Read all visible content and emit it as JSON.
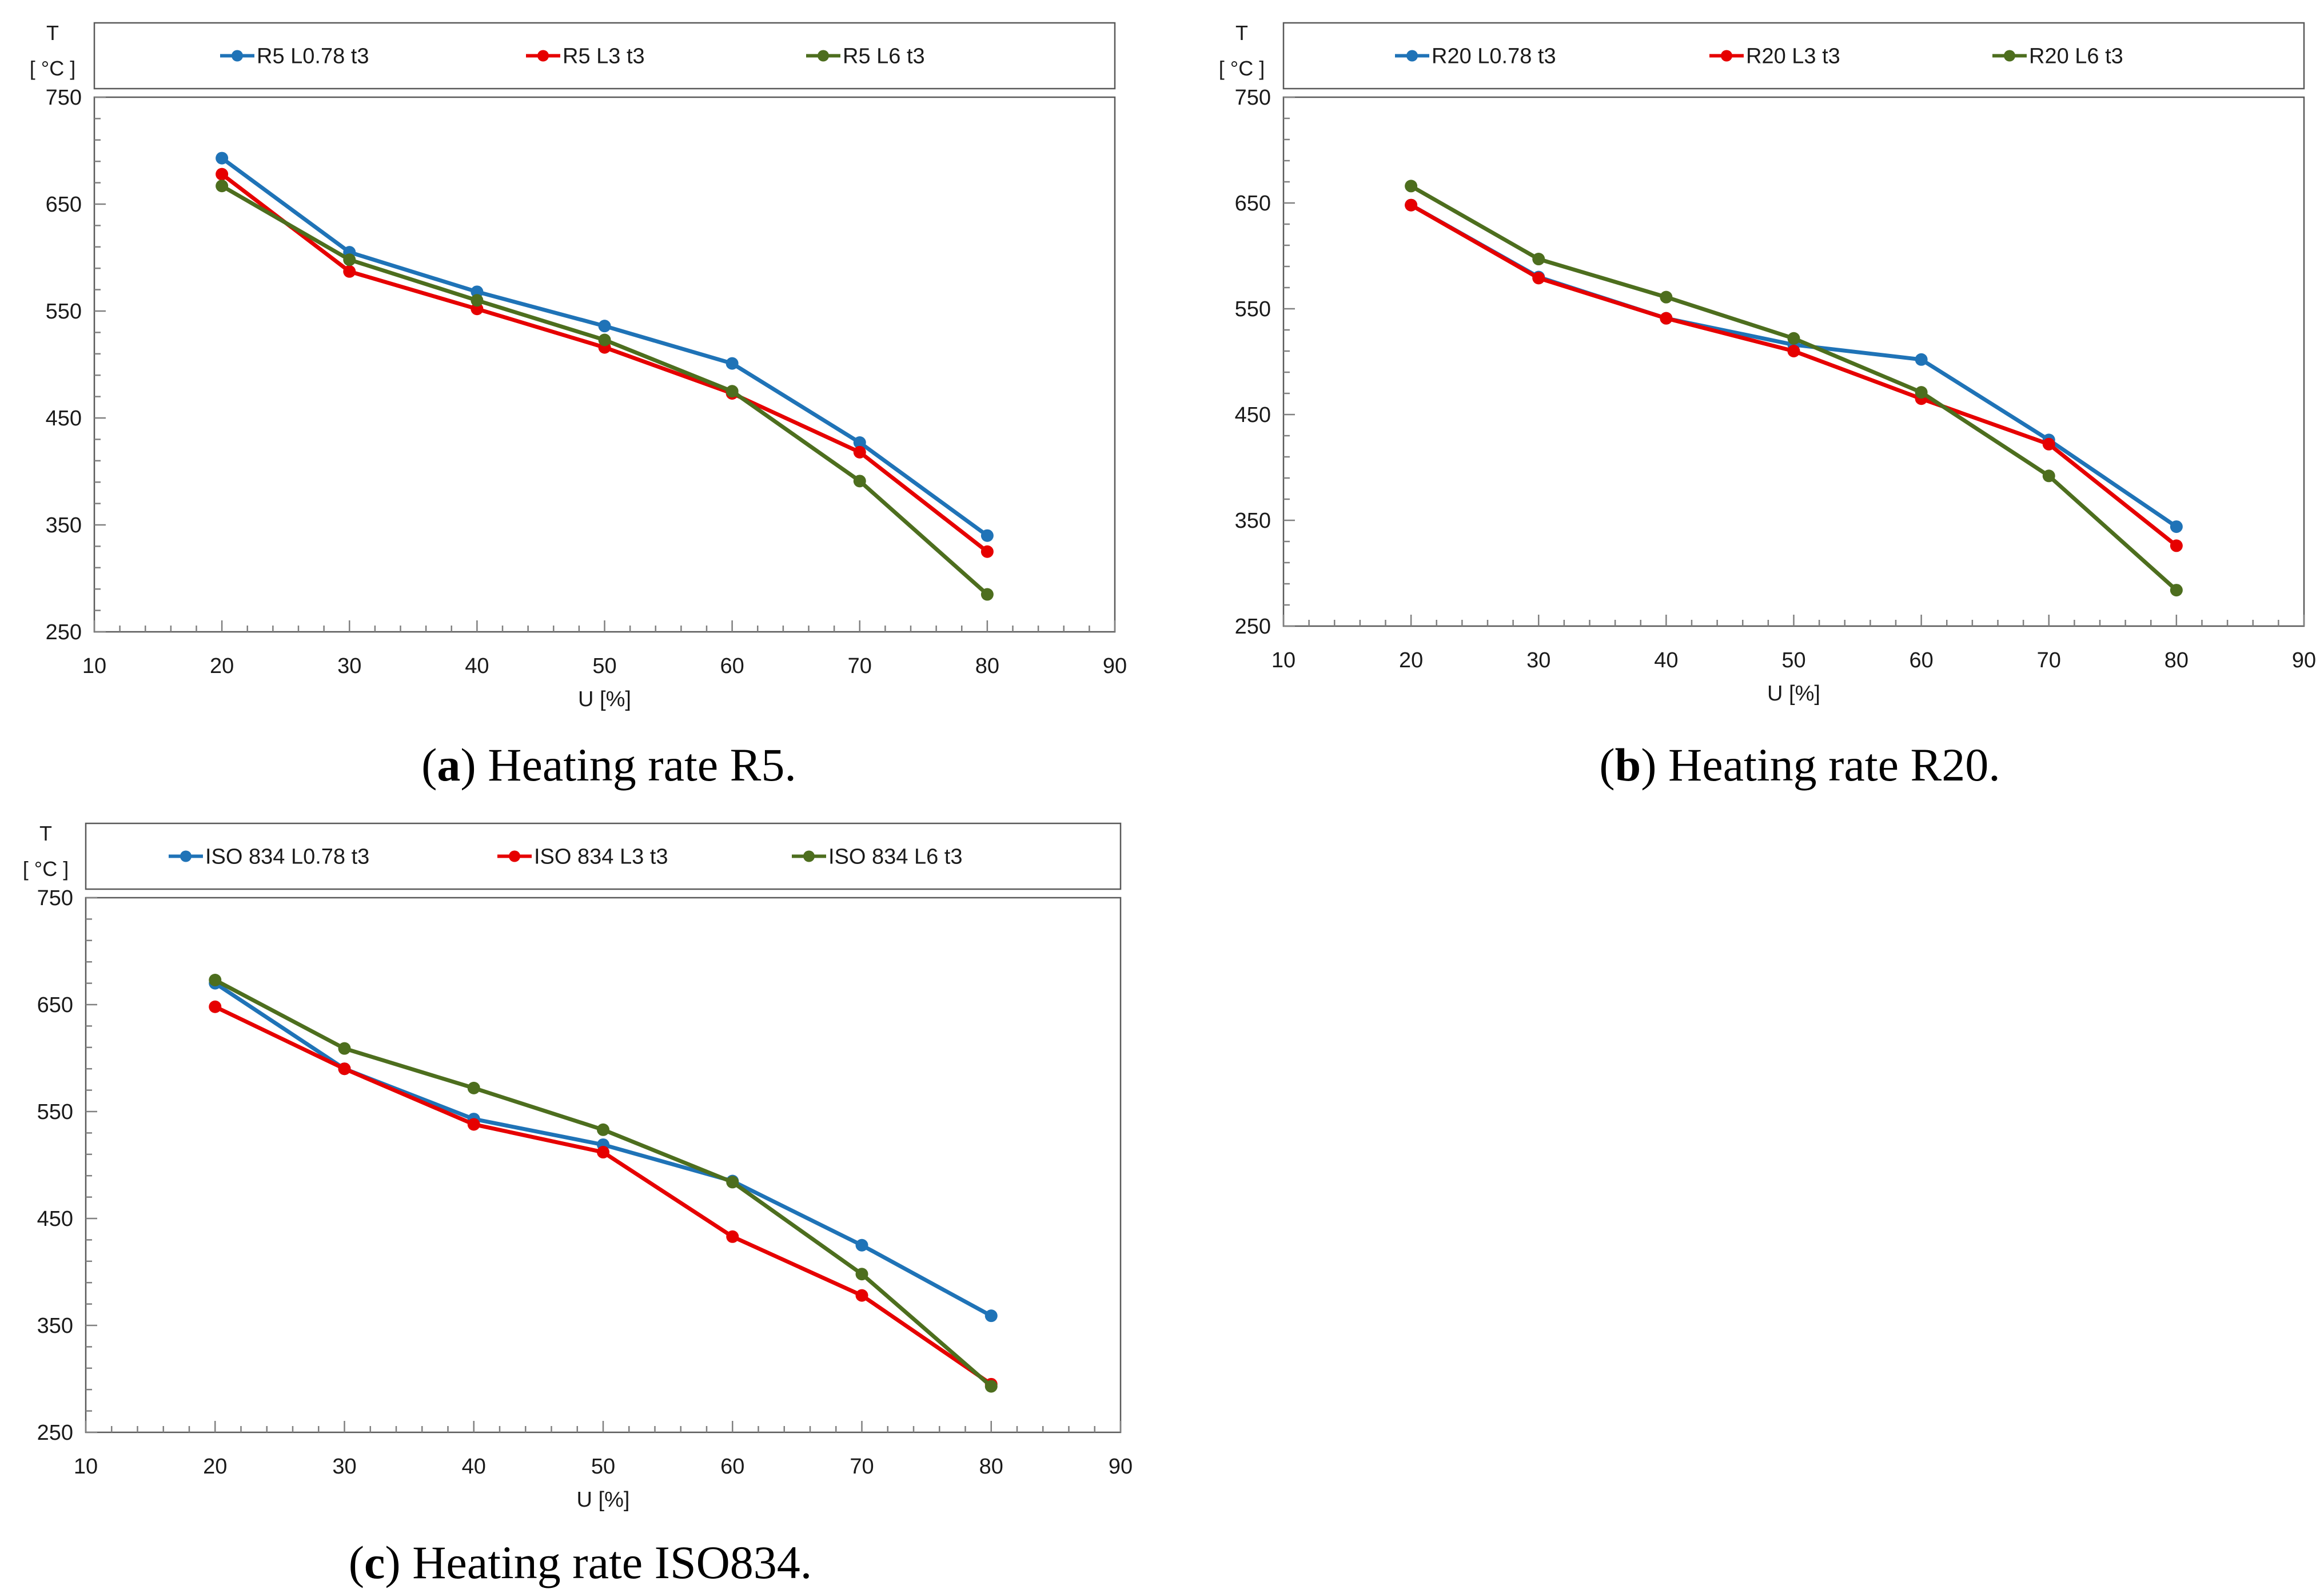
{
  "colors": {
    "blue": "#1f73b7",
    "red": "#e60000",
    "green": "#4d6e1e",
    "axis": "#808080",
    "frame": "#595959"
  },
  "chart_data": [
    {
      "type": "line",
      "caption_letter": "a",
      "caption_text": ") Heating rate R5.",
      "ylabel_top": "T",
      "ylabel_unit": "[ °C ]",
      "xlabel": "U [%]",
      "xlim": [
        10,
        90
      ],
      "ylim": [
        250,
        750
      ],
      "xticks": [
        10,
        20,
        30,
        40,
        50,
        60,
        70,
        80,
        90
      ],
      "yticks": [
        250,
        350,
        450,
        550,
        650,
        750
      ],
      "grid": false,
      "legend": "top",
      "x": [
        20,
        30,
        40,
        50,
        60,
        70,
        80
      ],
      "series": [
        {
          "name": "R5 L0.78 t3",
          "color": "#1f73b7",
          "values": [
            693,
            605,
            568,
            536,
            501,
            427,
            340
          ]
        },
        {
          "name": "R5 L3 t3",
          "color": "#e60000",
          "values": [
            678,
            587,
            552,
            516,
            473,
            418,
            325
          ]
        },
        {
          "name": "R5 L6 t3",
          "color": "#4d6e1e",
          "values": [
            667,
            598,
            560,
            523,
            475,
            391,
            285
          ]
        }
      ]
    },
    {
      "type": "line",
      "caption_letter": "b",
      "caption_text": ") Heating rate R20.",
      "ylabel_top": "T",
      "ylabel_unit": "[ °C ]",
      "xlabel": "U [%]",
      "xlim": [
        10,
        90
      ],
      "ylim": [
        250,
        750
      ],
      "xticks": [
        10,
        20,
        30,
        40,
        50,
        60,
        70,
        80,
        90
      ],
      "yticks": [
        250,
        350,
        450,
        550,
        650,
        750
      ],
      "grid": false,
      "legend": "top",
      "x": [
        20,
        30,
        40,
        50,
        60,
        70,
        80
      ],
      "series": [
        {
          "name": "R20 L0.78 t3",
          "color": "#1f73b7",
          "values": [
            648,
            580,
            541,
            516,
            502,
            426,
            344
          ]
        },
        {
          "name": "R20 L3 t3",
          "color": "#e60000",
          "values": [
            648,
            579,
            541,
            510,
            465,
            422,
            326
          ]
        },
        {
          "name": "R20 L6 t3",
          "color": "#4d6e1e",
          "values": [
            666,
            597,
            561,
            522,
            471,
            392,
            284
          ]
        }
      ]
    },
    {
      "type": "line",
      "caption_letter": "c",
      "caption_text": ") Heating rate ISO834.",
      "ylabel_top": "T",
      "ylabel_unit": "[ °C ]",
      "xlabel": "U [%]",
      "xlim": [
        10,
        90
      ],
      "ylim": [
        250,
        750
      ],
      "xticks": [
        10,
        20,
        30,
        40,
        50,
        60,
        70,
        80,
        90
      ],
      "yticks": [
        250,
        350,
        450,
        550,
        650,
        750
      ],
      "grid": false,
      "legend": "top",
      "x": [
        20,
        30,
        40,
        50,
        60,
        70,
        80
      ],
      "series": [
        {
          "name": "ISO 834 L0.78 t3",
          "color": "#1f73b7",
          "values": [
            670,
            590,
            543,
            519,
            485,
            425,
            359
          ]
        },
        {
          "name": "ISO 834 L3 t3",
          "color": "#e60000",
          "values": [
            648,
            590,
            538,
            512,
            433,
            378,
            295
          ]
        },
        {
          "name": "ISO 834 L6 t3",
          "color": "#4d6e1e",
          "values": [
            673,
            609,
            572,
            533,
            484,
            398,
            293
          ]
        }
      ]
    }
  ]
}
